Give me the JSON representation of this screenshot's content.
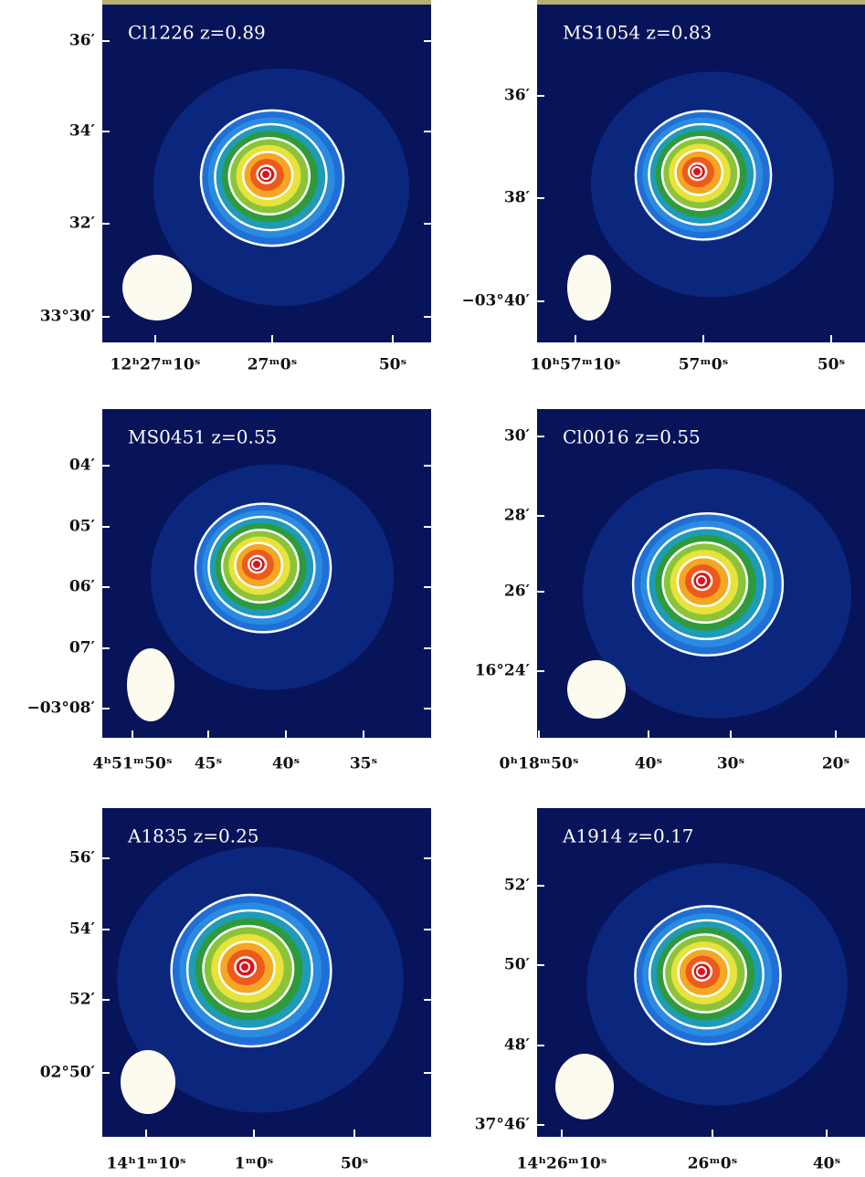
{
  "panels": [
    {
      "title": "Cl1226  z=0.89",
      "y_labels": [
        "36′",
        "34′",
        "32′",
        "33°30′"
      ],
      "x_labels": [
        "12ʰ27ᵐ10ˢ",
        "27ᵐ0ˢ",
        "50ˢ"
      ]
    },
    {
      "title": "MS1054  z=0.83",
      "y_labels": [
        "36′",
        "38′",
        "−03°40′"
      ],
      "x_labels": [
        "10ʰ57ᵐ10ˢ",
        "57ᵐ0ˢ",
        "50ˢ"
      ]
    },
    {
      "title": "MS0451  z=0.55",
      "y_labels": [
        "04′",
        "05′",
        "06′",
        "07′",
        "−03°08′"
      ],
      "x_labels": [
        "4ʰ51ᵐ50ˢ",
        "45ˢ",
        "40ˢ",
        "35ˢ"
      ]
    },
    {
      "title": "Cl0016  z=0.55",
      "y_labels": [
        "30′",
        "28′",
        "26′",
        "16°24′"
      ],
      "x_labels": [
        "0ʰ18ᵐ50ˢ",
        "40ˢ",
        "30ˢ",
        "20ˢ"
      ]
    },
    {
      "title": "A1835  z=0.25",
      "y_labels": [
        "56′",
        "54′",
        "52′",
        "02°50′"
      ],
      "x_labels": [
        "14ʰ1ᵐ10ˢ",
        "1ᵐ0ˢ",
        "50ˢ"
      ]
    },
    {
      "title": "A1914  z=0.17",
      "y_labels": [
        "52′",
        "50′",
        "48′",
        "37°46′"
      ],
      "x_labels": [
        "14ʰ26ᵐ10ˢ",
        "26ᵐ0ˢ",
        "40ˢ"
      ]
    }
  ]
}
